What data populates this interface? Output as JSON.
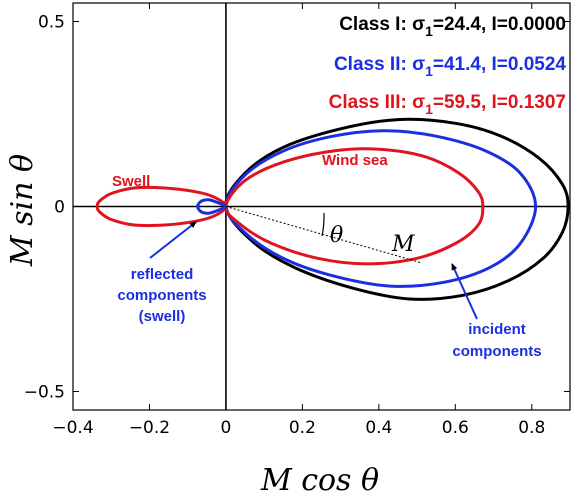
{
  "chart_data": {
    "type": "line",
    "xlabel": "M cos θ",
    "ylabel": "M sin θ",
    "xlim": [
      -0.4,
      0.9
    ],
    "ylim": [
      -0.55,
      0.55
    ],
    "xticks": [
      -0.4,
      -0.2,
      0,
      0.2,
      0.4,
      0.6,
      0.8
    ],
    "xtick_labels": [
      "−0.4",
      "−0.2",
      "0",
      "0.2",
      "0.4",
      "0.6",
      "0.8"
    ],
    "yticks": [
      -0.5,
      0,
      0.5
    ],
    "ytick_labels": [
      "−0.5",
      "0",
      "0.5"
    ],
    "grid": false,
    "legend_position": "top-right",
    "legend": [
      {
        "text": "Class I: σ1=24.4, I=0.0000",
        "color": "#000000"
      },
      {
        "text": "Class II: σ1=41.4, I=0.0524",
        "color": "#1a2fe0"
      },
      {
        "text": "Class III: σ1=59.5, I=0.1307",
        "color": "#e0141e"
      }
    ],
    "series": [
      {
        "color": "#000000",
        "points": [
          [
            0,
            0
          ],
          [
            0.05,
            0.09
          ],
          [
            0.15,
            0.16
          ],
          [
            0.3,
            0.21
          ],
          [
            0.45,
            0.235
          ],
          [
            0.6,
            0.225
          ],
          [
            0.72,
            0.19
          ],
          [
            0.82,
            0.13
          ],
          [
            0.88,
            0.06
          ],
          [
            0.895,
            0
          ],
          [
            0.88,
            -0.07
          ],
          [
            0.83,
            -0.14
          ],
          [
            0.74,
            -0.2
          ],
          [
            0.62,
            -0.24
          ],
          [
            0.48,
            -0.25
          ],
          [
            0.33,
            -0.22
          ],
          [
            0.18,
            -0.165
          ],
          [
            0.07,
            -0.095
          ],
          [
            0,
            0
          ]
        ]
      },
      {
        "color": "#1a2fe0",
        "points": [
          [
            0,
            0
          ],
          [
            0.05,
            0.085
          ],
          [
            0.15,
            0.15
          ],
          [
            0.28,
            0.19
          ],
          [
            0.42,
            0.205
          ],
          [
            0.55,
            0.19
          ],
          [
            0.68,
            0.15
          ],
          [
            0.77,
            0.09
          ],
          [
            0.81,
            0
          ],
          [
            0.77,
            -0.1
          ],
          [
            0.69,
            -0.165
          ],
          [
            0.57,
            -0.205
          ],
          [
            0.43,
            -0.215
          ],
          [
            0.29,
            -0.19
          ],
          [
            0.16,
            -0.145
          ],
          [
            0.06,
            -0.08
          ],
          [
            0,
            0
          ]
        ]
      },
      {
        "color": "#e0141e",
        "points": [
          [
            0,
            0
          ],
          [
            0.05,
            0.07
          ],
          [
            0.15,
            0.12
          ],
          [
            0.28,
            0.15
          ],
          [
            0.4,
            0.155
          ],
          [
            0.52,
            0.135
          ],
          [
            0.61,
            0.09
          ],
          [
            0.66,
            0.04
          ],
          [
            0.672,
            0
          ],
          [
            0.66,
            -0.05
          ],
          [
            0.6,
            -0.1
          ],
          [
            0.5,
            -0.14
          ],
          [
            0.37,
            -0.155
          ],
          [
            0.24,
            -0.14
          ],
          [
            0.12,
            -0.1
          ],
          [
            0.04,
            -0.05
          ],
          [
            0,
            0
          ]
        ]
      },
      {
        "color": "#e0141e",
        "points": [
          [
            0,
            0
          ],
          [
            -0.03,
            0.025
          ],
          [
            -0.08,
            0.04
          ],
          [
            -0.16,
            0.05
          ],
          [
            -0.24,
            0.05
          ],
          [
            -0.3,
            0.035
          ],
          [
            -0.33,
            0.015
          ],
          [
            -0.337,
            0
          ],
          [
            -0.33,
            -0.015
          ],
          [
            -0.3,
            -0.035
          ],
          [
            -0.24,
            -0.05
          ],
          [
            -0.16,
            -0.05
          ],
          [
            -0.08,
            -0.04
          ],
          [
            -0.03,
            -0.025
          ],
          [
            0,
            0
          ]
        ]
      },
      {
        "color": "#1a2fe0",
        "points": [
          [
            0,
            0
          ],
          [
            -0.02,
            0.01
          ],
          [
            -0.045,
            0.018
          ],
          [
            -0.065,
            0.014
          ],
          [
            -0.074,
            0
          ],
          [
            -0.065,
            -0.014
          ],
          [
            -0.045,
            -0.018
          ],
          [
            -0.02,
            -0.01
          ],
          [
            0,
            0
          ]
        ]
      }
    ],
    "annotations": [
      {
        "text": "Swell",
        "color": "#e0141e"
      },
      {
        "text": "Wind sea",
        "color": "#e0141e"
      },
      {
        "text": "reflected",
        "color": "#1a2fe0"
      },
      {
        "text": "components",
        "color": "#1a2fe0"
      },
      {
        "text": "(swell)",
        "color": "#1a2fe0"
      },
      {
        "text": "incident",
        "color": "#1a2fe0"
      },
      {
        "text": "components",
        "color": "#1a2fe0"
      }
    ],
    "symbols": {
      "theta": "θ",
      "m": "M"
    }
  }
}
